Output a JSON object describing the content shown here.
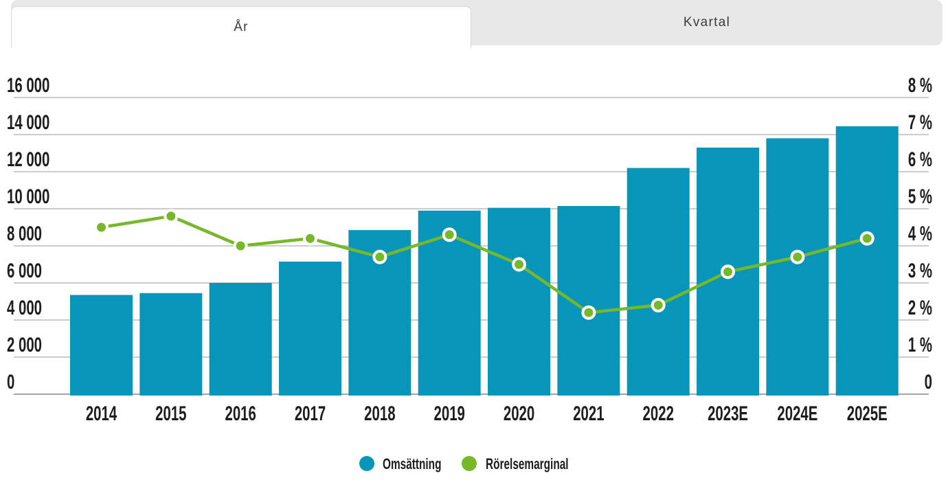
{
  "tabs": {
    "items": [
      {
        "label": "År",
        "active": true
      },
      {
        "label": "Kvartal",
        "active": false
      }
    ]
  },
  "legend": {
    "items": [
      {
        "label": "Omsättning",
        "color": "#0796ba"
      },
      {
        "label": "Rörelsemarginal",
        "color": "#76b82a"
      }
    ]
  },
  "chart_data": {
    "type": "bar",
    "subtype": "combo bar + line, dual axis",
    "categories": [
      "2014",
      "2015",
      "2016",
      "2017",
      "2018",
      "2019",
      "2020",
      "2021",
      "2022",
      "2023E",
      "2024E",
      "2025E"
    ],
    "series": [
      {
        "name": "Omsättning",
        "kind": "bar",
        "axis": "left",
        "color": "#0796ba",
        "values": [
          5350,
          5450,
          6000,
          7150,
          8850,
          9900,
          10050,
          10150,
          12200,
          13300,
          13800,
          14450
        ]
      },
      {
        "name": "Rörelsemarginal",
        "kind": "line",
        "axis": "right",
        "color": "#76b82a",
        "marker": "circle-green-white-ring",
        "values": [
          4.5,
          4.8,
          4.0,
          4.2,
          3.7,
          4.3,
          3.5,
          2.2,
          2.4,
          3.3,
          3.7,
          4.2
        ]
      }
    ],
    "left_axis": {
      "min": 0,
      "max": 16000,
      "step": 2000,
      "tick_labels": [
        "0",
        "2 000",
        "4 000",
        "6 000",
        "8 000",
        "10 000",
        "12 000",
        "14 000",
        "16 000"
      ]
    },
    "right_axis": {
      "min": 0,
      "max": 8,
      "step": 1,
      "tick_labels": [
        "0",
        "1 %",
        "2 %",
        "3 %",
        "4 %",
        "5 %",
        "6 %",
        "7 %",
        "8 %"
      ]
    },
    "grid": true,
    "legend_position": "bottom"
  },
  "colors": {
    "bar": "#0796ba",
    "line": "#76b82a",
    "grid": "#cccccc",
    "baseline": "#a6a6a6",
    "axis_text": "#1d1d1b",
    "tab_bg": "#e8e8e8"
  }
}
